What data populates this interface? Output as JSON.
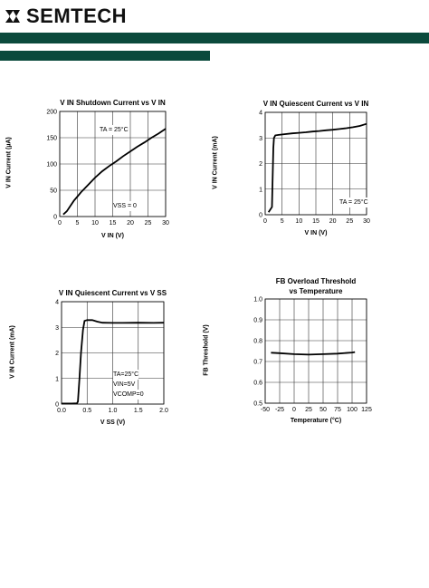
{
  "header": {
    "brand": "SEMTECH",
    "accent": "#0b4a3c"
  },
  "chart_data": [
    {
      "type": "line",
      "title": "V IN Shutdown Current vs V IN",
      "title_parts": {
        "a": "V",
        "a_sub": "IN",
        "b": " Shutdown Current vs V",
        "b_sub": "IN"
      },
      "xlabel": "V IN (V)",
      "ylabel": "V IN Current (µA)",
      "xlim": [
        0,
        30
      ],
      "ylim": [
        0,
        200
      ],
      "xticks": [
        0,
        5,
        10,
        15,
        20,
        25,
        30
      ],
      "yticks": [
        0,
        50,
        100,
        150,
        200
      ],
      "grid": true,
      "annotations": [
        "TA = 25°C",
        "VSS = 0"
      ],
      "series": [
        {
          "x": [
            1,
            2,
            3,
            4,
            5,
            6,
            8,
            10,
            12,
            14,
            16,
            18,
            20,
            22,
            24,
            26,
            28,
            30
          ],
          "y": [
            4,
            10,
            20,
            30,
            38,
            46,
            60,
            74,
            86,
            96,
            105,
            115,
            124,
            133,
            141,
            150,
            158,
            167
          ]
        }
      ]
    },
    {
      "type": "line",
      "title": "V IN Quiescent Current vs V IN",
      "xlabel": "V IN (V)",
      "ylabel": "V IN Current (mA)",
      "xlim": [
        0,
        30
      ],
      "ylim": [
        0,
        4
      ],
      "xticks": [
        0,
        5,
        10,
        15,
        20,
        25,
        30
      ],
      "yticks": [
        0,
        1,
        2,
        3,
        4
      ],
      "grid": true,
      "annotations": [
        "TA = 25°C"
      ],
      "series": [
        {
          "x": [
            1,
            2,
            2.4,
            2.6,
            3,
            4,
            6,
            8,
            10,
            12,
            14,
            16,
            18,
            20,
            22,
            24,
            26,
            28,
            30
          ],
          "y": [
            0.1,
            0.3,
            2.6,
            3.0,
            3.1,
            3.12,
            3.15,
            3.18,
            3.2,
            3.22,
            3.25,
            3.27,
            3.3,
            3.32,
            3.35,
            3.38,
            3.42,
            3.47,
            3.55
          ]
        }
      ]
    },
    {
      "type": "line",
      "title": "V IN Quiescent Current vs V SS",
      "xlabel": "V SS (V)",
      "ylabel": "V IN Current (mA)",
      "xlim": [
        0,
        2
      ],
      "ylim": [
        0,
        4
      ],
      "xticks": [
        "0.0",
        "0.5",
        "1.0",
        "1.5",
        "2.0"
      ],
      "yticks": [
        0,
        1,
        2,
        3,
        4
      ],
      "grid": true,
      "annotations": [
        "TA=25°C",
        "VIN=5V",
        "VCOMP=0"
      ],
      "series": [
        {
          "x": [
            0,
            0.2,
            0.3,
            0.32,
            0.35,
            0.38,
            0.42,
            0.45,
            0.5,
            0.6,
            0.7,
            0.8,
            1.0,
            1.2,
            1.5,
            1.8,
            2.0
          ],
          "y": [
            0.02,
            0.02,
            0.03,
            0.1,
            1.0,
            2.0,
            2.9,
            3.25,
            3.28,
            3.28,
            3.22,
            3.18,
            3.17,
            3.17,
            3.18,
            3.17,
            3.18
          ]
        }
      ]
    },
    {
      "type": "line",
      "title": "FB Overload Threshold",
      "subtitle": "vs Temperature",
      "xlabel": "Temperature (°C)",
      "ylabel": "FB Threshold (V)",
      "xlim": [
        -50,
        125
      ],
      "ylim": [
        0.5,
        1.0
      ],
      "xticks": [
        -50,
        -25,
        0,
        25,
        50,
        75,
        100,
        125
      ],
      "yticks": [
        "0.5",
        "0.6",
        "0.7",
        "0.8",
        "0.9",
        "1.0"
      ],
      "grid": true,
      "annotations": [],
      "series": [
        {
          "x": [
            -40,
            -25,
            0,
            25,
            50,
            75,
            100,
            105
          ],
          "y": [
            0.742,
            0.74,
            0.735,
            0.733,
            0.735,
            0.738,
            0.743,
            0.745
          ]
        }
      ]
    }
  ]
}
